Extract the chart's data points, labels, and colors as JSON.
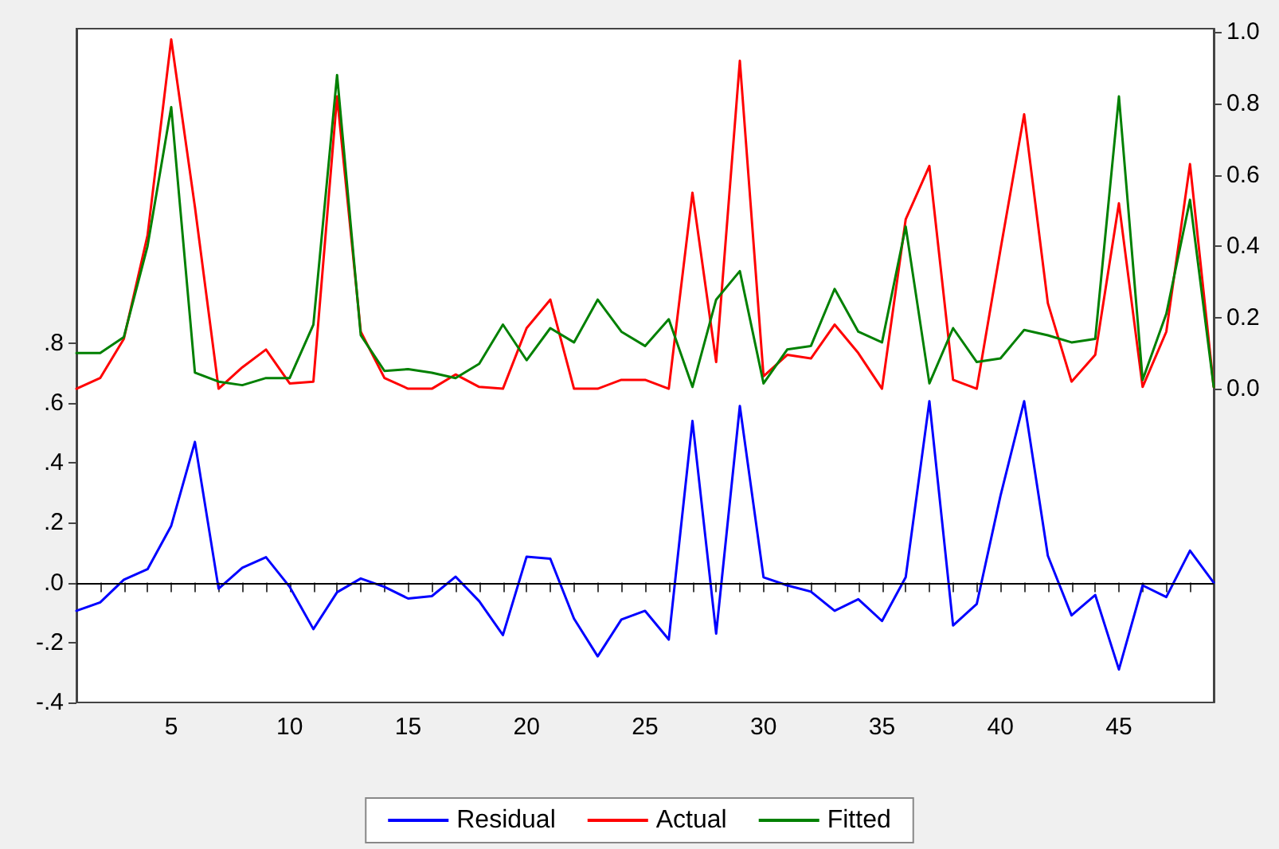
{
  "chart_data": {
    "type": "line",
    "x": [
      1,
      2,
      3,
      4,
      5,
      6,
      7,
      8,
      9,
      10,
      11,
      12,
      13,
      14,
      15,
      16,
      17,
      18,
      19,
      20,
      21,
      22,
      23,
      24,
      25,
      26,
      27,
      28,
      29,
      30,
      31,
      32,
      33,
      34,
      35,
      36,
      37,
      38,
      39,
      40,
      41,
      42,
      43,
      44,
      45,
      46,
      47,
      48,
      49
    ],
    "series": [
      {
        "name": "Residual",
        "color": "#0000ff",
        "axis": "y",
        "values": [
          -0.094,
          -0.066,
          0.01,
          0.045,
          0.19,
          0.47,
          -0.02,
          0.05,
          0.085,
          -0.014,
          -0.155,
          -0.032,
          0.014,
          -0.014,
          -0.053,
          -0.045,
          0.02,
          -0.062,
          -0.175,
          0.087,
          0.08,
          -0.12,
          -0.246,
          -0.123,
          -0.094,
          -0.19,
          0.54,
          -0.17,
          0.59,
          0.018,
          -0.009,
          -0.03,
          -0.094,
          -0.055,
          -0.128,
          0.018,
          0.606,
          -0.143,
          -0.071,
          0.29,
          0.606,
          0.09,
          -0.109,
          -0.041,
          -0.29,
          -0.009,
          -0.048,
          0.107,
          0.0
        ]
      },
      {
        "name": "Actual",
        "color": "#ff0000",
        "axis": "y2",
        "values": [
          0.0,
          0.03,
          0.14,
          0.43,
          0.98,
          0.51,
          0.0,
          0.06,
          0.11,
          0.015,
          0.02,
          0.82,
          0.16,
          0.03,
          0.0,
          0.0,
          0.04,
          0.005,
          0.0,
          0.17,
          0.25,
          0.0,
          0.0,
          0.025,
          0.025,
          0.0,
          0.55,
          0.075,
          0.92,
          0.035,
          0.095,
          0.085,
          0.18,
          0.1,
          0.0,
          0.475,
          0.625,
          0.025,
          0.0,
          0.39,
          0.77,
          0.24,
          0.02,
          0.095,
          0.52,
          0.005,
          0.16,
          0.63,
          0.005
        ]
      },
      {
        "name": "Fitted",
        "color": "#008000",
        "axis": "y2",
        "values": [
          0.1,
          0.1,
          0.145,
          0.4,
          0.79,
          0.045,
          0.02,
          0.01,
          0.03,
          0.03,
          0.18,
          0.88,
          0.15,
          0.05,
          0.055,
          0.045,
          0.03,
          0.07,
          0.18,
          0.08,
          0.17,
          0.13,
          0.25,
          0.16,
          0.12,
          0.195,
          0.005,
          0.25,
          0.33,
          0.015,
          0.11,
          0.12,
          0.28,
          0.16,
          0.13,
          0.455,
          0.015,
          0.17,
          0.075,
          0.085,
          0.165,
          0.15,
          0.13,
          0.14,
          0.82,
          0.025,
          0.21,
          0.53,
          0.005
        ]
      }
    ],
    "xlim": [
      1,
      49
    ],
    "xticks": [
      {
        "value": 1,
        "label": null
      },
      {
        "value": 2,
        "label": null
      },
      {
        "value": 3,
        "label": null
      },
      {
        "value": 4,
        "label": null
      },
      5,
      {
        "value": 6,
        "label": null
      },
      {
        "value": 7,
        "label": null
      },
      {
        "value": 8,
        "label": null
      },
      {
        "value": 9,
        "label": null
      },
      10,
      {
        "value": 11,
        "label": null
      },
      {
        "value": 12,
        "label": null
      },
      {
        "value": 13,
        "label": null
      },
      {
        "value": 14,
        "label": null
      },
      15,
      {
        "value": 16,
        "label": null
      },
      {
        "value": 17,
        "label": null
      },
      {
        "value": 18,
        "label": null
      },
      {
        "value": 19,
        "label": null
      },
      20,
      {
        "value": 21,
        "label": null
      },
      {
        "value": 22,
        "label": null
      },
      {
        "value": 23,
        "label": null
      },
      {
        "value": 24,
        "label": null
      },
      25,
      {
        "value": 26,
        "label": null
      },
      {
        "value": 27,
        "label": null
      },
      {
        "value": 28,
        "label": null
      },
      {
        "value": 29,
        "label": null
      },
      30,
      {
        "value": 31,
        "label": null
      },
      {
        "value": 32,
        "label": null
      },
      {
        "value": 33,
        "label": null
      },
      {
        "value": 34,
        "label": null
      },
      35,
      {
        "value": 36,
        "label": null
      },
      {
        "value": 37,
        "label": null
      },
      {
        "value": 38,
        "label": null
      },
      {
        "value": 39,
        "label": null
      },
      40,
      {
        "value": 41,
        "label": null
      },
      {
        "value": 42,
        "label": null
      },
      {
        "value": 43,
        "label": null
      },
      {
        "value": 44,
        "label": null
      },
      45,
      {
        "value": 46,
        "label": null
      },
      {
        "value": 47,
        "label": null
      },
      {
        "value": 48,
        "label": null
      },
      {
        "value": 49,
        "label": null
      }
    ],
    "ylim": [
      -0.4,
      1.85
    ],
    "yticks": [
      {
        "value": -0.4,
        "label": "-.4"
      },
      {
        "value": -0.2,
        "label": "-.2"
      },
      {
        "value": 0,
        "label": ".0"
      },
      {
        "value": 0.2,
        "label": ".2"
      },
      {
        "value": 0.4,
        "label": ".4"
      },
      {
        "value": 0.6,
        "label": ".6"
      },
      {
        "value": 0.8,
        "label": ".8"
      }
    ],
    "y2lim": [
      -0.88,
      1.01
    ],
    "y2ticks": [
      {
        "value": 0,
        "label": "0.0"
      },
      {
        "value": 0.2,
        "label": "0.2"
      },
      {
        "value": 0.4,
        "label": "0.4"
      },
      {
        "value": 0.6,
        "label": "0.6"
      },
      {
        "value": 0.8,
        "label": "0.8"
      },
      {
        "value": 1.0,
        "label": "1.0"
      }
    ],
    "ref_lines": [
      {
        "axis": "y",
        "value": 0,
        "color": "#000000"
      }
    ],
    "grid": false,
    "legend": "bottom",
    "marker": "none",
    "line_style": "solid"
  }
}
